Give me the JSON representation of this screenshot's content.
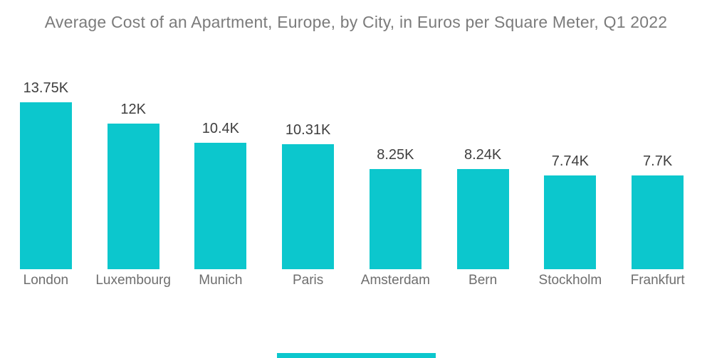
{
  "title": "Average Cost of an Apartment, Europe, by City, in Euros per Square Meter, Q1 2022",
  "chart_data": {
    "type": "bar",
    "title": "Average Cost of an Apartment, Europe, by City, in Euros per Square Meter, Q1 2022",
    "categories": [
      "London",
      "Luxembourg",
      "Munich",
      "Paris",
      "Amsterdam",
      "Bern",
      "Stockholm",
      "Frankfurt"
    ],
    "values": [
      13750,
      12000,
      10400,
      10310,
      8250,
      8240,
      7740,
      7700
    ],
    "value_labels": [
      "13.75K",
      "12K",
      "10.4K",
      "10.31K",
      "8.25K",
      "8.24K",
      "7.74K",
      "7.7K"
    ],
    "xlabel": "",
    "ylabel": "",
    "grid": false,
    "legend": false,
    "bar_color": "#0cc7cd"
  },
  "colors": {
    "background": "#ffffff",
    "bar": "#0cc7cd",
    "title_text": "#7b7b7b",
    "value_label_text": "#3e3e3e",
    "category_label_text": "#6e6e6e",
    "accent_strip": "#0cc7cd"
  }
}
